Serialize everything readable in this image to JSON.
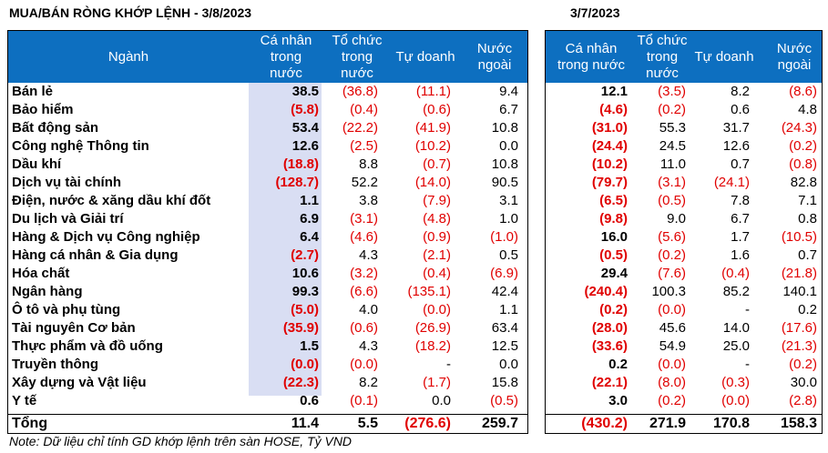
{
  "title_left": "MUA/BÁN RÒNG KHỚP LỆNH - 3/8/2023",
  "title_right": "3/7/2023",
  "headers_left": [
    "Ngành",
    "Cá nhân\ntrong\nnước",
    "Tổ chức\ntrong\nnước",
    "Tự doanh",
    "Nước\nngoài"
  ],
  "headers_right": [
    "Cá nhân\ntrong nước",
    "Tổ chức\ntrong\nnước",
    "Tự doanh",
    "Nước\nngoài"
  ],
  "rows": [
    {
      "name": "Bán lẻ",
      "left": [
        "38.5",
        "(36.8)",
        "(11.1)",
        "9.4"
      ],
      "right": [
        "12.1",
        "(3.5)",
        "8.2",
        "(8.6)"
      ]
    },
    {
      "name": "Bảo hiểm",
      "left": [
        "(5.8)",
        "(0.4)",
        "(0.6)",
        "6.7"
      ],
      "right": [
        "(4.6)",
        "(0.2)",
        "0.6",
        "4.8"
      ]
    },
    {
      "name": "Bất động sản",
      "left": [
        "53.4",
        "(22.2)",
        "(41.9)",
        "10.8"
      ],
      "right": [
        "(31.0)",
        "55.3",
        "31.7",
        "(24.3)"
      ]
    },
    {
      "name": "Công nghệ Thông tin",
      "left": [
        "12.6",
        "(2.5)",
        "(10.2)",
        "0.0"
      ],
      "right": [
        "(24.4)",
        "24.5",
        "12.6",
        "(0.2)"
      ]
    },
    {
      "name": "Dầu khí",
      "left": [
        "(18.8)",
        "8.8",
        "(0.7)",
        "10.8"
      ],
      "right": [
        "(10.2)",
        "11.0",
        "0.7",
        "(0.8)"
      ]
    },
    {
      "name": "Dịch vụ tài chính",
      "left": [
        "(128.7)",
        "52.2",
        "(14.0)",
        "90.5"
      ],
      "right": [
        "(79.7)",
        "(3.1)",
        "(24.1)",
        "82.8"
      ]
    },
    {
      "name": "Điện, nước & xăng dầu khí đốt",
      "left": [
        "1.1",
        "3.8",
        "(7.9)",
        "3.1"
      ],
      "right": [
        "(6.5)",
        "(0.5)",
        "7.8",
        "7.1"
      ]
    },
    {
      "name": "Du lịch và Giải trí",
      "left": [
        "6.9",
        "(3.1)",
        "(4.8)",
        "1.0"
      ],
      "right": [
        "(9.8)",
        "9.0",
        "6.7",
        "0.8"
      ]
    },
    {
      "name": "Hàng & Dịch vụ Công nghiệp",
      "left": [
        "6.4",
        "(4.6)",
        "(0.9)",
        "(1.0)"
      ],
      "right": [
        "16.0",
        "(5.6)",
        "1.7",
        "(10.5)"
      ]
    },
    {
      "name": "Hàng cá nhân & Gia dụng",
      "left": [
        "(2.7)",
        "4.3",
        "(2.1)",
        "0.5"
      ],
      "right": [
        "(0.5)",
        "(0.2)",
        "1.6",
        "0.7"
      ]
    },
    {
      "name": "Hóa chất",
      "left": [
        "10.6",
        "(3.2)",
        "(0.4)",
        "(6.9)"
      ],
      "right": [
        "29.4",
        "(7.6)",
        "(0.4)",
        "(21.8)"
      ]
    },
    {
      "name": "Ngân hàng",
      "left": [
        "99.3",
        "(6.6)",
        "(135.1)",
        "42.4"
      ],
      "right": [
        "(240.4)",
        "100.3",
        "85.2",
        "140.1"
      ]
    },
    {
      "name": "Ô tô và phụ tùng",
      "left": [
        "(5.0)",
        "4.0",
        "(0.0)",
        "1.1"
      ],
      "right": [
        "(0.2)",
        "(0.0)",
        "-",
        "0.2"
      ]
    },
    {
      "name": "Tài nguyên Cơ bản",
      "left": [
        "(35.9)",
        "(0.6)",
        "(26.9)",
        "63.4"
      ],
      "right": [
        "(28.0)",
        "45.6",
        "14.0",
        "(17.6)"
      ]
    },
    {
      "name": "Thực phẩm và đồ uống",
      "left": [
        "1.5",
        "4.3",
        "(18.2)",
        "12.5"
      ],
      "right": [
        "(33.6)",
        "54.9",
        "25.0",
        "(21.3)"
      ]
    },
    {
      "name": "Truyền thông",
      "left": [
        "(0.0)",
        "(0.0)",
        "-",
        "0.0"
      ],
      "right": [
        "0.2",
        "(0.0)",
        "-",
        "(0.2)"
      ]
    },
    {
      "name": "Xây dựng và Vật liệu",
      "left": [
        "(22.3)",
        "8.2",
        "(1.7)",
        "15.8"
      ],
      "right": [
        "(22.1)",
        "(8.0)",
        "(0.3)",
        "30.0"
      ]
    },
    {
      "name": "Y tế",
      "left": [
        "0.6",
        "(0.1)",
        "0.0",
        "(0.5)"
      ],
      "right": [
        "3.0",
        "(0.2)",
        "(0.0)",
        "(2.8)"
      ]
    }
  ],
  "total": {
    "name": "Tổng",
    "left": [
      "11.4",
      "5.5",
      "(276.6)",
      "259.7"
    ],
    "right": [
      "(430.2)",
      "271.9",
      "170.8",
      "158.3"
    ]
  },
  "note": "Note: Dữ liệu chỉ tính GD khớp lệnh trên sàn HOSE, Tỷ VND"
}
